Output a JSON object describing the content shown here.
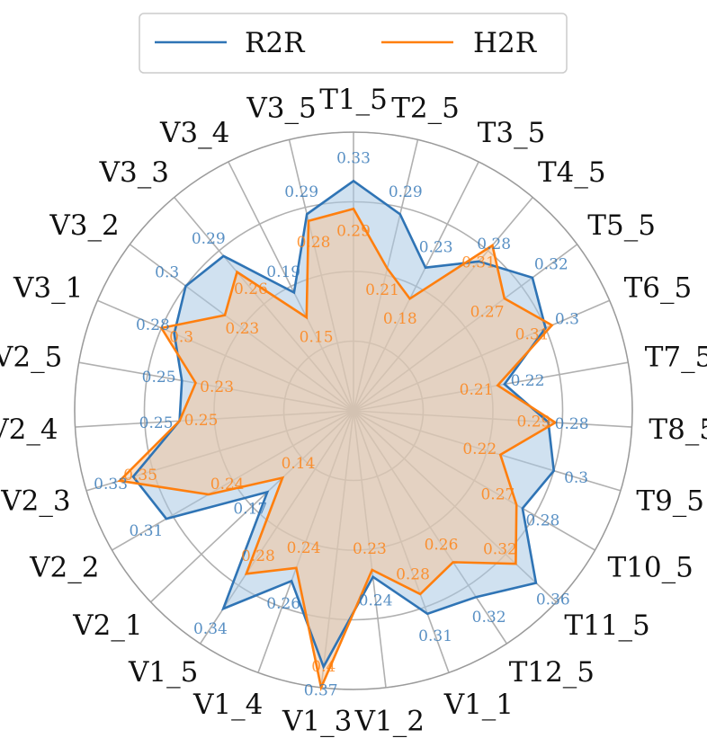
{
  "chart_data": {
    "type": "radar",
    "axes": [
      "T1_5",
      "T2_5",
      "T3_5",
      "T4_5",
      "T5_5",
      "T6_5",
      "T7_5",
      "T8_5",
      "T9_5",
      "T10_5",
      "T11_5",
      "T12_5",
      "V1_1",
      "V1_2",
      "V1_3",
      "V1_4",
      "V1_5",
      "V2_1",
      "V2_2",
      "V2_3",
      "V2_4",
      "V2_5",
      "V3_1",
      "V3_2",
      "V3_3",
      "V3_4",
      "V3_5"
    ],
    "rmax": 0.4,
    "grid_levels": [
      0.1,
      0.2,
      0.3,
      0.4
    ],
    "legend_position": "top-center",
    "series": [
      {
        "name": "R2R",
        "color": "#2f74b5",
        "fill": "#aac8e3",
        "values": [
          0.33,
          0.29,
          0.23,
          0.28,
          0.32,
          0.3,
          0.22,
          0.28,
          0.3,
          0.28,
          0.36,
          0.32,
          0.31,
          0.24,
          0.37,
          0.26,
          0.34,
          0.17,
          0.31,
          0.33,
          0.25,
          0.25,
          0.28,
          0.3,
          0.29,
          0.19,
          0.29
        ]
      },
      {
        "name": "H2R",
        "color": "#ff7f0e",
        "fill": "#f4c69c",
        "values": [
          0.29,
          0.21,
          0.18,
          0.31,
          0.27,
          0.31,
          0.21,
          0.29,
          0.22,
          0.27,
          0.32,
          0.26,
          0.28,
          0.23,
          0.4,
          0.24,
          0.28,
          0.14,
          0.24,
          0.35,
          0.25,
          0.23,
          0.3,
          0.23,
          0.26,
          0.15,
          0.28
        ]
      }
    ]
  }
}
